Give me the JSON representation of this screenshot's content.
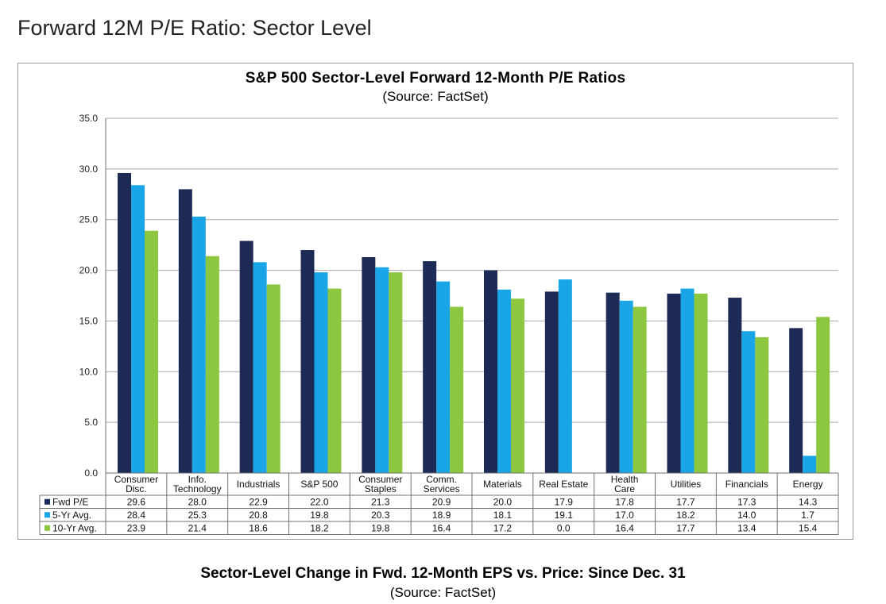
{
  "page_title": "Forward 12M P/E Ratio: Sector Level",
  "footer": {
    "title": "Sector-Level Change in Fwd. 12-Month EPS vs. Price: Since Dec. 31",
    "subtitle": "(Source: FactSet)"
  },
  "chart_data": {
    "type": "bar",
    "title": "S&P 500 Sector-Level Forward 12-Month P/E Ratios",
    "subtitle": "(Source: FactSet)",
    "xlabel": "",
    "ylabel": "",
    "ylim": [
      0,
      35
    ],
    "yticks": [
      "0.0",
      "5.0",
      "10.0",
      "15.0",
      "20.0",
      "25.0",
      "30.0",
      "35.0"
    ],
    "grid": true,
    "categories": [
      [
        "Consumer",
        "Disc."
      ],
      [
        "Info.",
        "Technology"
      ],
      [
        "Industrials"
      ],
      [
        "S&P 500"
      ],
      [
        "Consumer",
        "Staples"
      ],
      [
        "Comm.",
        "Services"
      ],
      [
        "Materials"
      ],
      [
        "Real Estate"
      ],
      [
        "Health",
        "Care"
      ],
      [
        "Utilities"
      ],
      [
        "Financials"
      ],
      [
        "Energy"
      ]
    ],
    "series": [
      {
        "name": "Fwd P/E",
        "color": "#1c2a55",
        "values": [
          29.6,
          28.0,
          22.9,
          22.0,
          21.3,
          20.9,
          20.0,
          17.9,
          17.8,
          17.7,
          17.3,
          14.3
        ],
        "labels": [
          "29.6",
          "28.0",
          "22.9",
          "22.0",
          "21.3",
          "20.9",
          "20.0",
          "17.9",
          "17.8",
          "17.7",
          "17.3",
          "14.3"
        ]
      },
      {
        "name": "5-Yr Avg.",
        "color": "#1aa6e6",
        "values": [
          28.4,
          25.3,
          20.8,
          19.8,
          20.3,
          18.9,
          18.1,
          19.1,
          17.0,
          18.2,
          14.0,
          1.7
        ],
        "labels": [
          "28.4",
          "25.3",
          "20.8",
          "19.8",
          "20.3",
          "18.9",
          "18.1",
          "19.1",
          "17.0",
          "18.2",
          "14.0",
          "1.7"
        ]
      },
      {
        "name": "10-Yr Avg.",
        "color": "#8dc63f",
        "values": [
          23.9,
          21.4,
          18.6,
          18.2,
          19.8,
          16.4,
          17.2,
          0.0,
          16.4,
          17.7,
          13.4,
          15.4
        ],
        "labels": [
          "23.9",
          "21.4",
          "18.6",
          "18.2",
          "19.8",
          "16.4",
          "17.2",
          "0.0",
          "16.4",
          "17.7",
          "13.4",
          "15.4"
        ]
      }
    ],
    "legend_placement": "data-table"
  }
}
